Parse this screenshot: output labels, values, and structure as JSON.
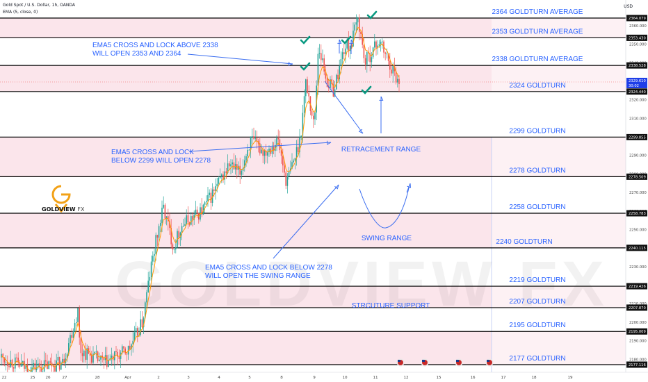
{
  "header": {
    "symbol": "Gold Spot / U.S. Dollar, 1h, OANDA",
    "indicator": "EMA (5, close, 0)",
    "currency": "USD"
  },
  "logo": {
    "brand": "GOLDVIEW",
    "suffix": "FX",
    "watermark": "GOLDVIEW FX"
  },
  "chart_data": {
    "type": "candlestick",
    "symbol": "Gold Spot / U.S. Dollar",
    "timeframe": "1h",
    "y_range": [
      2172,
      2368
    ],
    "price_ticks": [
      2180.0,
      2190.0,
      2200.0,
      2210.0,
      2220.0,
      2230.0,
      2240.0,
      2250.0,
      2260.0,
      2270.0,
      2280.0,
      2290.0,
      2300.0,
      2310.0,
      2320.0,
      2330.0,
      2340.0,
      2350.0,
      2360.0
    ],
    "date_ticks": [
      "22",
      "25",
      "26",
      "27",
      "28",
      "Apr",
      "2",
      "3",
      "4",
      "5",
      "8",
      "9",
      "10",
      "11",
      "12",
      "15",
      "16",
      "17",
      "18",
      "19"
    ],
    "levels": [
      {
        "price": 2364.079,
        "label": "2364 GOLDTURN AVERAGE"
      },
      {
        "price": 2353.43,
        "label": "2353 GOLDTURN AVERAGE"
      },
      {
        "price": 2338.528,
        "label": "2338 GOLDTURN AVERAGE"
      },
      {
        "price": 2324.44,
        "label": "2324 GOLDTURN"
      },
      {
        "price": 2299.855,
        "label": "2299 GOLDTURN"
      },
      {
        "price": 2278.509,
        "label": "2278 GOLDTURN"
      },
      {
        "price": 2258.783,
        "label": "2258 GOLDTURN"
      },
      {
        "price": 2240.115,
        "label": "2240 GOLDTURN"
      },
      {
        "price": 2219.426,
        "label": "2219 GOLDTURN"
      },
      {
        "price": 2207.87,
        "label": "2207 GOLDTURN"
      },
      {
        "price": 2195.009,
        "label": "2195 GOLDTURN"
      },
      {
        "price": 2177.116,
        "label": "2177 GOLDTURN"
      }
    ],
    "current_price": {
      "value": "2329.610",
      "countdown": "30:02"
    },
    "annotations": [
      {
        "id": "ema-2338",
        "lines": [
          "EMA5 CROSS AND LOCK ABOVE 2338",
          "WILL OPEN  2353 AND 2364"
        ]
      },
      {
        "id": "ema-2299",
        "lines": [
          "EMA5 CROSS AND LOCK",
          "BELOW 2299 WILL OPEN 2278"
        ]
      },
      {
        "id": "ema-2278",
        "lines": [
          "EMA5 CROSS AND LOCK BELOW 2278",
          "WILL OPEN THE SWING RANGE"
        ]
      },
      {
        "id": "retracement",
        "lines": [
          "RETRACEMENT RANGE"
        ]
      },
      {
        "id": "swing",
        "lines": [
          "SWING RANGE"
        ]
      },
      {
        "id": "structure",
        "lines": [
          "STRCUTURE SUPPORT"
        ]
      }
    ],
    "grid": false,
    "colors": {
      "up": "#26a69a",
      "down": "#ef5350",
      "ema": "#ff9800",
      "accent": "#1e53e5",
      "band": "#fbe5eb",
      "check": "#089981"
    }
  }
}
